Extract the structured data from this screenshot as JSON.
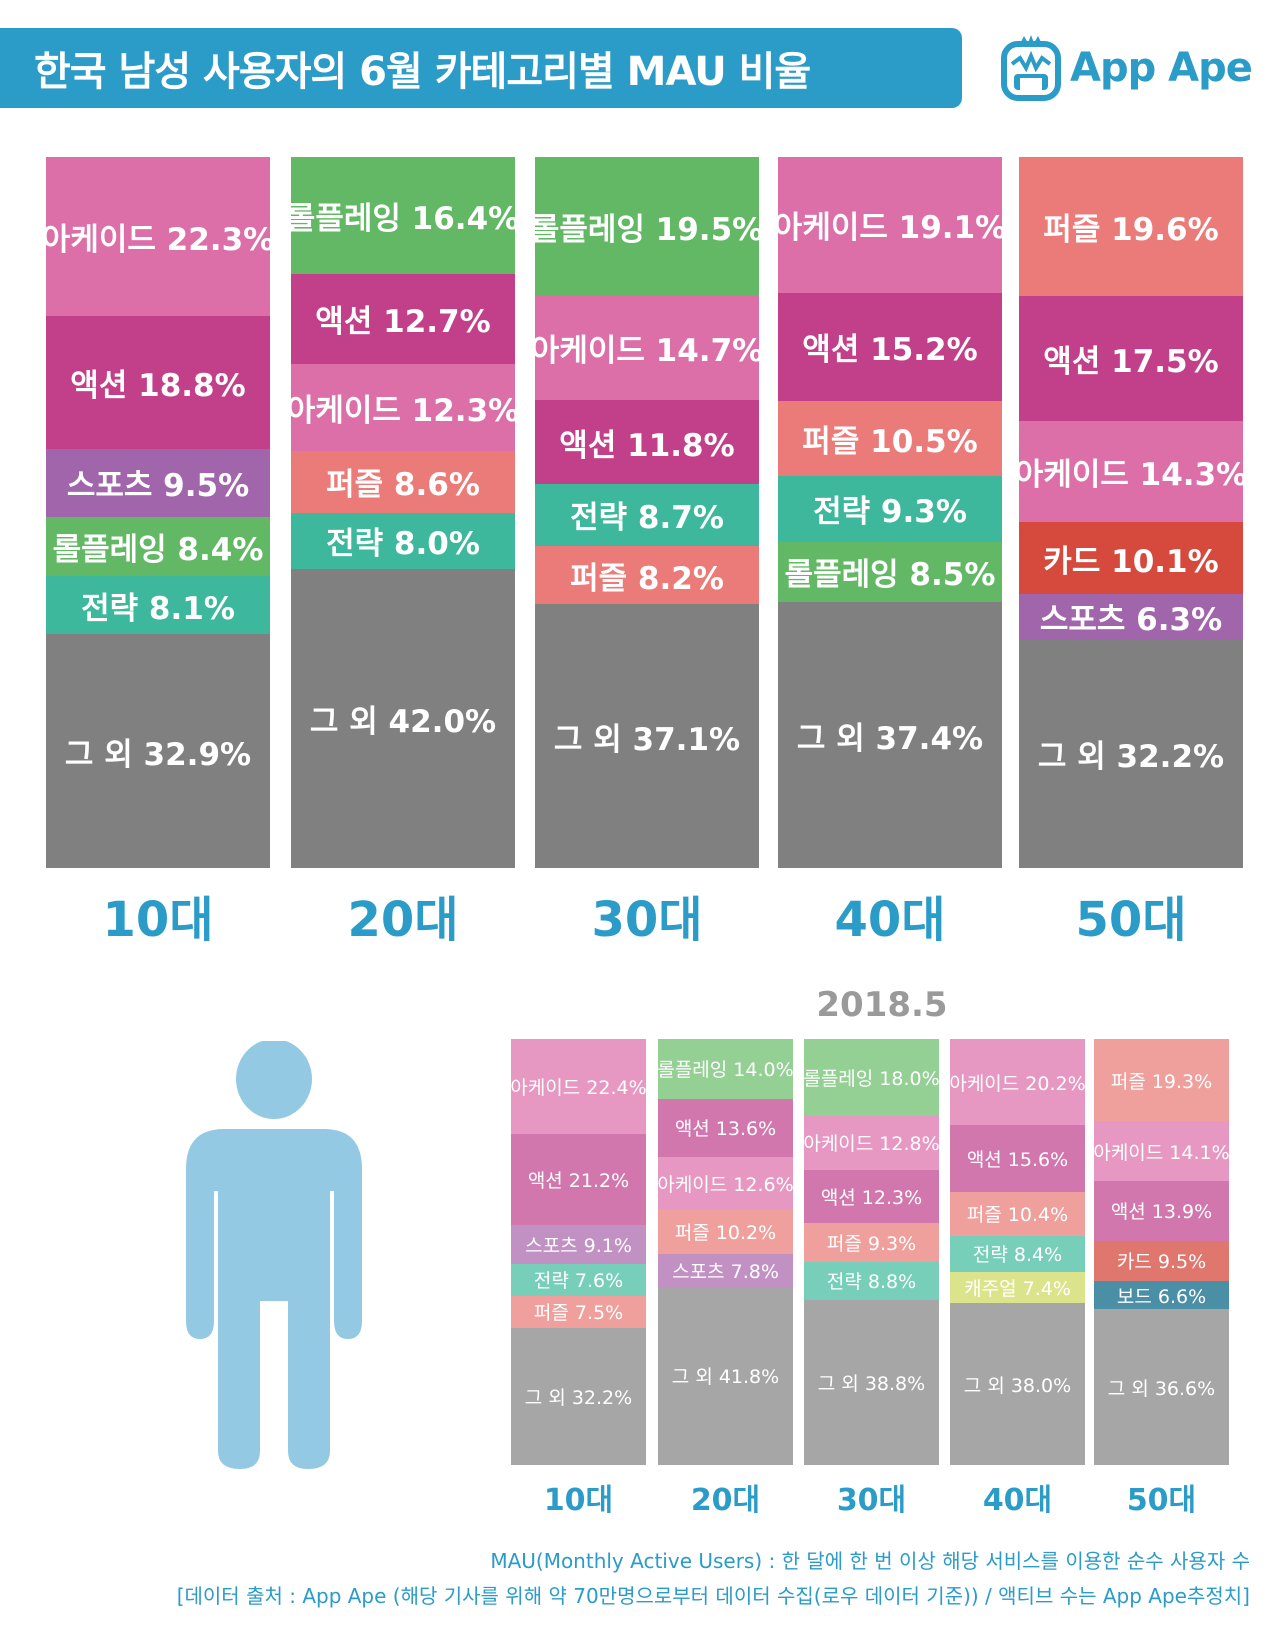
{
  "title": "한국 남성 사용자의 6월 카테고리별 MAU 비율",
  "logo_text": "App Ape",
  "colors": {
    "아케이드": "#dc6ea8",
    "액션": "#c2408a",
    "스포츠": "#a065ab",
    "롤플레잉": "#63b866",
    "전략": "#3db89c",
    "퍼즐": "#eb7b78",
    "카드": "#d64a3e",
    "그 외": "#808080"
  },
  "colors_prev": {
    "아케이드": "#e698c2",
    "액션": "#d277ad",
    "스포츠": "#c191c4",
    "롤플레잉": "#94cf94",
    "전략": "#77cfba",
    "퍼즐": "#f0a09c",
    "카드": "#e0776e",
    "캐주얼": "#dbe48a",
    "보드": "#4b8fa6",
    "그 외": "#a6a6a6"
  },
  "chart_data": [
    {
      "type": "bar",
      "stacked": true,
      "period": "6월",
      "categories": [
        "10대",
        "20대",
        "30대",
        "40대",
        "50대"
      ],
      "stacks": [
        [
          {
            "name": "아케이드",
            "value": 22.3
          },
          {
            "name": "액션",
            "value": 18.8
          },
          {
            "name": "스포츠",
            "value": 9.5
          },
          {
            "name": "롤플레잉",
            "value": 8.4
          },
          {
            "name": "전략",
            "value": 8.1
          },
          {
            "name": "그 외",
            "value": 32.9
          }
        ],
        [
          {
            "name": "롤플레잉",
            "value": 16.4
          },
          {
            "name": "액션",
            "value": 12.7
          },
          {
            "name": "아케이드",
            "value": 12.3
          },
          {
            "name": "퍼즐",
            "value": 8.6
          },
          {
            "name": "전략",
            "value": 8.0
          },
          {
            "name": "그 외",
            "value": 42.0
          }
        ],
        [
          {
            "name": "롤플레잉",
            "value": 19.5
          },
          {
            "name": "아케이드",
            "value": 14.7
          },
          {
            "name": "액션",
            "value": 11.8
          },
          {
            "name": "전략",
            "value": 8.7
          },
          {
            "name": "퍼즐",
            "value": 8.2
          },
          {
            "name": "그 외",
            "value": 37.1
          }
        ],
        [
          {
            "name": "아케이드",
            "value": 19.1
          },
          {
            "name": "액션",
            "value": 15.2
          },
          {
            "name": "퍼즐",
            "value": 10.5
          },
          {
            "name": "전략",
            "value": 9.3
          },
          {
            "name": "롤플레잉",
            "value": 8.5
          },
          {
            "name": "그 외",
            "value": 37.4
          }
        ],
        [
          {
            "name": "퍼즐",
            "value": 19.6
          },
          {
            "name": "액션",
            "value": 17.5
          },
          {
            "name": "아케이드",
            "value": 14.3
          },
          {
            "name": "카드",
            "value": 10.1
          },
          {
            "name": "스포츠",
            "value": 6.3
          },
          {
            "name": "그 외",
            "value": 32.2
          }
        ]
      ]
    },
    {
      "type": "bar",
      "stacked": true,
      "title": "2018.5",
      "categories": [
        "10대",
        "20대",
        "30대",
        "40대",
        "50대"
      ],
      "stacks": [
        [
          {
            "name": "아케이드",
            "value": 22.4
          },
          {
            "name": "액션",
            "value": 21.2
          },
          {
            "name": "스포츠",
            "value": 9.1
          },
          {
            "name": "전략",
            "value": 7.6
          },
          {
            "name": "퍼즐",
            "value": 7.5
          },
          {
            "name": "그 외",
            "value": 32.2
          }
        ],
        [
          {
            "name": "롤플레잉",
            "value": 14.0
          },
          {
            "name": "액션",
            "value": 13.6
          },
          {
            "name": "아케이드",
            "value": 12.6
          },
          {
            "name": "퍼즐",
            "value": 10.2
          },
          {
            "name": "스포츠",
            "value": 7.8
          },
          {
            "name": "그 외",
            "value": 41.8
          }
        ],
        [
          {
            "name": "롤플레잉",
            "value": 18.0
          },
          {
            "name": "아케이드",
            "value": 12.8
          },
          {
            "name": "액션",
            "value": 12.3
          },
          {
            "name": "퍼즐",
            "value": 9.3
          },
          {
            "name": "전략",
            "value": 8.8
          },
          {
            "name": "그 외",
            "value": 38.8
          }
        ],
        [
          {
            "name": "아케이드",
            "value": 20.2
          },
          {
            "name": "액션",
            "value": 15.6
          },
          {
            "name": "퍼즐",
            "value": 10.4
          },
          {
            "name": "전략",
            "value": 8.4
          },
          {
            "name": "캐주얼",
            "value": 7.4
          },
          {
            "name": "그 외",
            "value": 38.0
          }
        ],
        [
          {
            "name": "퍼즐",
            "value": 19.3
          },
          {
            "name": "아케이드",
            "value": 14.1
          },
          {
            "name": "액션",
            "value": 13.9
          },
          {
            "name": "카드",
            "value": 9.5
          },
          {
            "name": "보드",
            "value": 6.6
          },
          {
            "name": "그 외",
            "value": 36.6
          }
        ]
      ]
    }
  ],
  "footer": {
    "line1": "MAU(Monthly Active Users) : 한 달에 한 번 이상 해당 서비스를 이용한 순수 사용자 수",
    "line2": "[데이터 출처 : App Ape (해당 기사를 위해 약 70만명으로부터 데이터 수집(로우 데이터 기준)) / 액티브 수는 App Ape추정치]"
  }
}
